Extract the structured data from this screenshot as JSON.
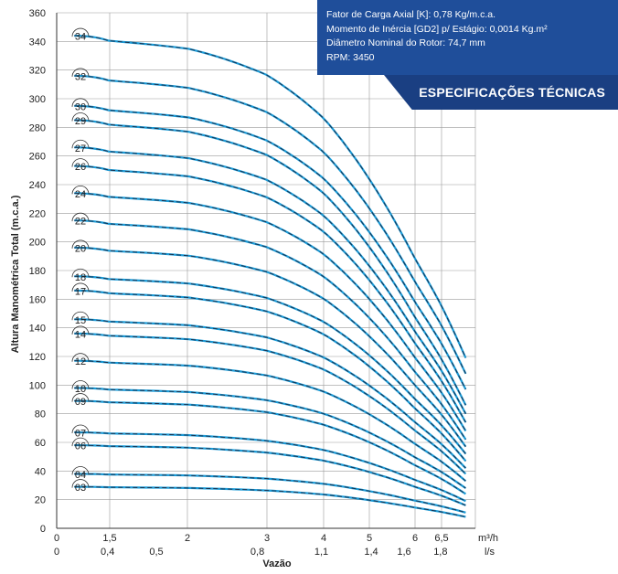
{
  "spec_box": {
    "line1": "Fator de Carga Axial [K]: 0,78 Kg/m.c.a.",
    "line2": "Momento de Inércia [GD2] p/ Estágio: 0,0014 Kg.m²",
    "line3": "Diâmetro Nominal do Rotor: 74,7 mm",
    "line4": "RPM: 3450"
  },
  "spec_tab": {
    "title": "ESPECIFICAÇÕES TÉCNICAS"
  },
  "colors": {
    "box": "#1f4e9a",
    "curve_main": "#1a9ad6",
    "curve_dash": "#1b2a44",
    "grid": "#9a9a9a"
  },
  "chart_data": {
    "type": "line",
    "xlabel": "Vazão",
    "ylabel": "Altura Manométrica Total (m.c.a.)",
    "x_unit_primary": "m³/h",
    "x_unit_secondary": "l/s",
    "xlim": [
      0,
      7.2
    ],
    "ylim": [
      0,
      360
    ],
    "y_ticks": [
      0,
      20,
      40,
      60,
      80,
      100,
      120,
      140,
      160,
      180,
      200,
      220,
      240,
      260,
      280,
      300,
      320,
      340,
      360
    ],
    "x_ticks_m3h": [
      {
        "value": 0,
        "label": "0"
      },
      {
        "value": 1.5,
        "label": "1,5"
      },
      {
        "value": 2,
        "label": "2"
      },
      {
        "value": 3,
        "label": "3"
      },
      {
        "value": 4,
        "label": "4"
      },
      {
        "value": 5,
        "label": "5"
      },
      {
        "value": 6,
        "label": "6"
      },
      {
        "value": 6.5,
        "label": "6,5"
      }
    ],
    "x_ticks_ls": [
      {
        "value": 0,
        "label": "0"
      },
      {
        "value": 1.44,
        "label": "0,4"
      },
      {
        "value": 1.8,
        "label": "0,5"
      },
      {
        "value": 2.88,
        "label": "0,8"
      },
      {
        "value": 3.96,
        "label": "1,1"
      },
      {
        "value": 5.04,
        "label": "1,4"
      },
      {
        "value": 5.76,
        "label": "1,6"
      },
      {
        "value": 6.48,
        "label": "1,8"
      }
    ],
    "x_curve_range": [
      0.5,
      7.0
    ],
    "series": [
      {
        "name": "34",
        "shutoff": 344,
        "end": 119
      },
      {
        "name": "32",
        "shutoff": 316,
        "end": 108
      },
      {
        "name": "30",
        "shutoff": 295,
        "end": 97
      },
      {
        "name": "29",
        "shutoff": 285,
        "end": 86
      },
      {
        "name": "27",
        "shutoff": 266,
        "end": 80
      },
      {
        "name": "26",
        "shutoff": 253,
        "end": 74
      },
      {
        "name": "24",
        "shutoff": 234,
        "end": 68
      },
      {
        "name": "22",
        "shutoff": 215,
        "end": 62
      },
      {
        "name": "20",
        "shutoff": 196,
        "end": 57
      },
      {
        "name": "18",
        "shutoff": 176,
        "end": 52
      },
      {
        "name": "17",
        "shutoff": 166,
        "end": 47
      },
      {
        "name": "15",
        "shutoff": 146,
        "end": 42
      },
      {
        "name": "14",
        "shutoff": 136,
        "end": 38
      },
      {
        "name": "12",
        "shutoff": 117,
        "end": 33
      },
      {
        "name": "10",
        "shutoff": 98,
        "end": 28
      },
      {
        "name": "09",
        "shutoff": 89,
        "end": 24
      },
      {
        "name": "07",
        "shutoff": 67,
        "end": 19
      },
      {
        "name": "06",
        "shutoff": 58,
        "end": 16
      },
      {
        "name": "04",
        "shutoff": 38,
        "end": 11
      },
      {
        "name": "03",
        "shutoff": 29,
        "end": 8
      }
    ]
  }
}
